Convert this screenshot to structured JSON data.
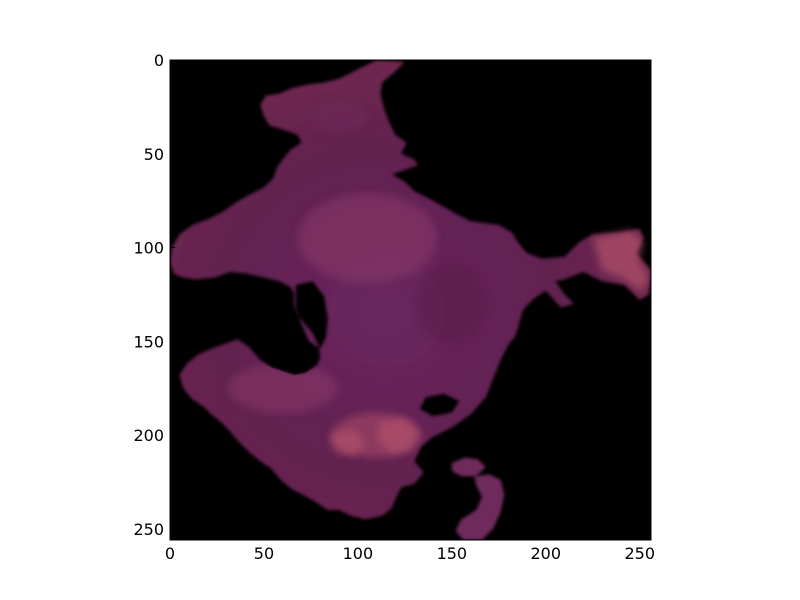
{
  "chart_data": {
    "type": "heatmap",
    "title": "",
    "xlabel": "",
    "ylabel": "",
    "xlim": [
      0,
      256
    ],
    "ylim": [
      256,
      0
    ],
    "xticks": [
      0,
      50,
      100,
      150,
      200,
      250
    ],
    "yticks": [
      0,
      50,
      100,
      150,
      200,
      250
    ],
    "grid": false,
    "legend": "none",
    "background_color": "#000000",
    "colors": {
      "region_dark": "#5a1c4a",
      "region_mid": "#6e2a5c",
      "region_light": "#8a3a6a",
      "region_highlight": "#b0506a"
    },
    "region_outline": [
      [
        110,
        0
      ],
      [
        125,
        1
      ],
      [
        120,
        6
      ],
      [
        113,
        12
      ],
      [
        112,
        18
      ],
      [
        114,
        26
      ],
      [
        117,
        34
      ],
      [
        120,
        40
      ],
      [
        126,
        44
      ],
      [
        123,
        50
      ],
      [
        130,
        53
      ],
      [
        132,
        56
      ],
      [
        124,
        59
      ],
      [
        118,
        61
      ],
      [
        125,
        65
      ],
      [
        130,
        70
      ],
      [
        138,
        74
      ],
      [
        147,
        79
      ],
      [
        152,
        82
      ],
      [
        160,
        86
      ],
      [
        175,
        88
      ],
      [
        182,
        92
      ],
      [
        185,
        97
      ],
      [
        190,
        103
      ],
      [
        198,
        106
      ],
      [
        210,
        105
      ],
      [
        218,
        97
      ],
      [
        225,
        93
      ],
      [
        240,
        92
      ],
      [
        250,
        90
      ],
      [
        252,
        95
      ],
      [
        248,
        103
      ],
      [
        256,
        112
      ],
      [
        255,
        125
      ],
      [
        250,
        128
      ],
      [
        242,
        120
      ],
      [
        230,
        118
      ],
      [
        220,
        113
      ],
      [
        210,
        117
      ],
      [
        205,
        118
      ],
      [
        210,
        125
      ],
      [
        215,
        130
      ],
      [
        208,
        132
      ],
      [
        200,
        123
      ],
      [
        194,
        127
      ],
      [
        188,
        133
      ],
      [
        186,
        140
      ],
      [
        184,
        147
      ],
      [
        180,
        152
      ],
      [
        176,
        160
      ],
      [
        172,
        170
      ],
      [
        168,
        180
      ],
      [
        160,
        189
      ],
      [
        150,
        196
      ],
      [
        140,
        201
      ],
      [
        134,
        206
      ],
      [
        130,
        214
      ],
      [
        135,
        220
      ],
      [
        130,
        226
      ],
      [
        123,
        228
      ],
      [
        120,
        234
      ],
      [
        118,
        239
      ],
      [
        113,
        243
      ],
      [
        104,
        245
      ],
      [
        96,
        243
      ],
      [
        90,
        240
      ],
      [
        84,
        240
      ],
      [
        78,
        236
      ],
      [
        71,
        232
      ],
      [
        65,
        229
      ],
      [
        59,
        224
      ],
      [
        54,
        218
      ],
      [
        48,
        214
      ],
      [
        42,
        209
      ],
      [
        36,
        203
      ],
      [
        31,
        197
      ],
      [
        27,
        193
      ],
      [
        22,
        189
      ],
      [
        18,
        185
      ],
      [
        12,
        181
      ],
      [
        7,
        175
      ],
      [
        5,
        168
      ],
      [
        9,
        162
      ],
      [
        15,
        157
      ],
      [
        22,
        154
      ],
      [
        30,
        151
      ],
      [
        36,
        149
      ],
      [
        42,
        153
      ],
      [
        48,
        160
      ],
      [
        54,
        164
      ],
      [
        60,
        166
      ],
      [
        66,
        168
      ],
      [
        72,
        167
      ],
      [
        78,
        163
      ],
      [
        80,
        159
      ],
      [
        79,
        152
      ],
      [
        76,
        146
      ],
      [
        72,
        141
      ],
      [
        68,
        136
      ],
      [
        66,
        131
      ],
      [
        66,
        124
      ],
      [
        64,
        121
      ],
      [
        58,
        118
      ],
      [
        50,
        116
      ],
      [
        41,
        114
      ],
      [
        32,
        113
      ],
      [
        24,
        116
      ],
      [
        14,
        117
      ],
      [
        7,
        116
      ],
      [
        2,
        114
      ],
      [
        0,
        108
      ],
      [
        1,
        100
      ],
      [
        5,
        93
      ],
      [
        12,
        88
      ],
      [
        20,
        85
      ],
      [
        28,
        81
      ],
      [
        35,
        76
      ],
      [
        42,
        72
      ],
      [
        50,
        68
      ],
      [
        55,
        63
      ],
      [
        57,
        57
      ],
      [
        60,
        53
      ],
      [
        64,
        48
      ],
      [
        70,
        44
      ],
      [
        68,
        40
      ],
      [
        60,
        37
      ],
      [
        53,
        35
      ],
      [
        50,
        30
      ],
      [
        48,
        24
      ],
      [
        51,
        19
      ],
      [
        58,
        18
      ],
      [
        65,
        15
      ],
      [
        74,
        13
      ],
      [
        82,
        12
      ],
      [
        90,
        10
      ],
      [
        96,
        7
      ],
      [
        102,
        4
      ]
    ],
    "region_holes": [
      [
        [
          67,
          120
        ],
        [
          76,
          118
        ],
        [
          82,
          126
        ],
        [
          84,
          138
        ],
        [
          83,
          148
        ],
        [
          80,
          154
        ],
        [
          74,
          150
        ],
        [
          70,
          141
        ],
        [
          67,
          132
        ]
      ],
      [
        [
          136,
          180
        ],
        [
          146,
          178
        ],
        [
          154,
          182
        ],
        [
          150,
          188
        ],
        [
          140,
          190
        ],
        [
          133,
          186
        ]
      ]
    ],
    "blobs": [
      [
        [
          150,
          215
        ],
        [
          157,
          212
        ],
        [
          164,
          213
        ],
        [
          168,
          217
        ],
        [
          163,
          222
        ],
        [
          155,
          222
        ],
        [
          150,
          219
        ]
      ],
      [
        [
          162,
          222
        ],
        [
          170,
          221
        ],
        [
          176,
          224
        ],
        [
          178,
          232
        ],
        [
          176,
          241
        ],
        [
          172,
          250
        ],
        [
          166,
          256
        ],
        [
          156,
          256
        ],
        [
          152,
          251
        ],
        [
          155,
          245
        ],
        [
          163,
          240
        ],
        [
          166,
          233
        ],
        [
          163,
          227
        ]
      ]
    ],
    "highlights": [
      [
        [
          225,
          95
        ],
        [
          245,
          91
        ],
        [
          252,
          97
        ],
        [
          249,
          106
        ],
        [
          255,
          116
        ],
        [
          251,
          124
        ],
        [
          242,
          117
        ],
        [
          230,
          112
        ]
      ],
      [
        [
          112,
          193
        ],
        [
          124,
          191
        ],
        [
          132,
          198
        ],
        [
          128,
          208
        ],
        [
          118,
          210
        ],
        [
          110,
          202
        ]
      ],
      [
        [
          85,
          200
        ],
        [
          98,
          197
        ],
        [
          104,
          204
        ],
        [
          98,
          211
        ],
        [
          88,
          209
        ]
      ]
    ]
  }
}
